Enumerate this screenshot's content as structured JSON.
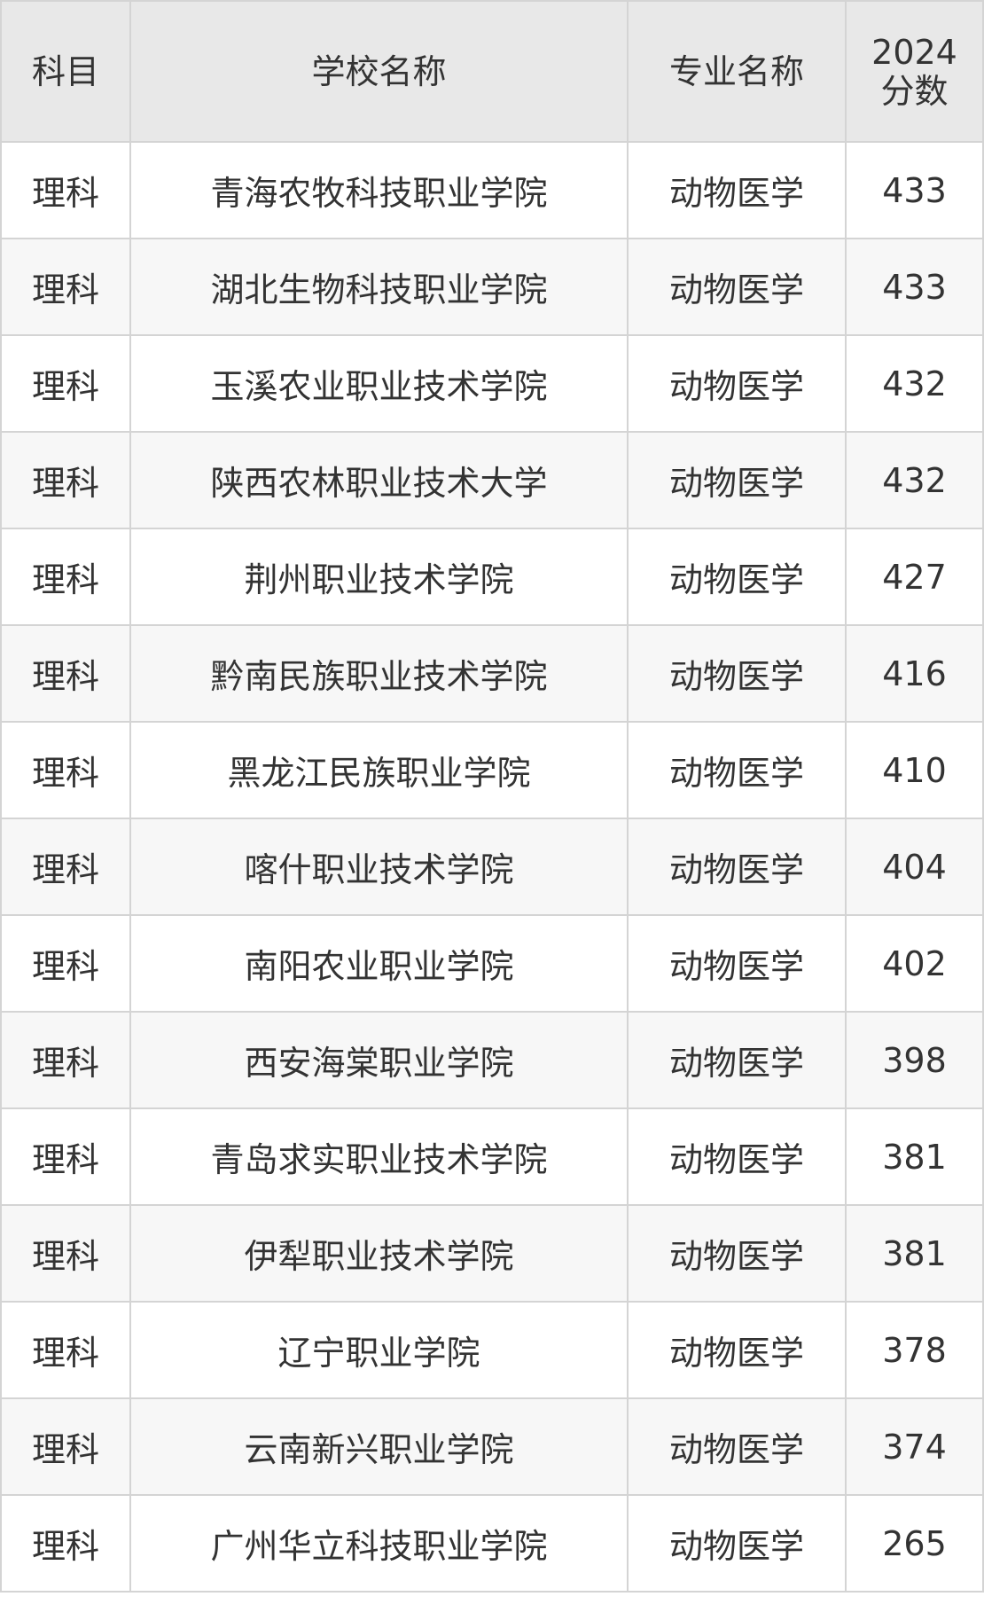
{
  "table": {
    "header": [
      "科目",
      "学校名称",
      "专业名称",
      "2024\n分数"
    ],
    "rows": [
      [
        "理科",
        "青海农牧科技职业学院",
        "动物医学",
        433
      ],
      [
        "理科",
        "湖北生物科技职业学院",
        "动物医学",
        433
      ],
      [
        "理科",
        "玉溪农业职业技术学院",
        "动物医学",
        432
      ],
      [
        "理科",
        "陕西农林职业技术大学",
        "动物医学",
        432
      ],
      [
        "理科",
        "荆州职业技术学院",
        "动物医学",
        427
      ],
      [
        "理科",
        "黔南民族职业技术学院",
        "动物医学",
        416
      ],
      [
        "理科",
        "黑龙江民族职业学院",
        "动物医学",
        410
      ],
      [
        "理科",
        "喀什职业技术学院",
        "动物医学",
        404
      ],
      [
        "理科",
        "南阳农业职业学院",
        "动物医学",
        402
      ],
      [
        "理科",
        "西安海棠职业学院",
        "动物医学",
        398
      ],
      [
        "理科",
        "青岛求实职业技术学院",
        "动物医学",
        381
      ],
      [
        "理科",
        "伊犁职业技术学院",
        "动物医学",
        381
      ],
      [
        "理科",
        "辽宁职业学院",
        "动物医学",
        378
      ],
      [
        "理科",
        "云南新兴职业学院",
        "动物医学",
        374
      ],
      [
        "理科",
        "广州华立科技职业学院",
        "动物医学",
        265
      ]
    ]
  }
}
